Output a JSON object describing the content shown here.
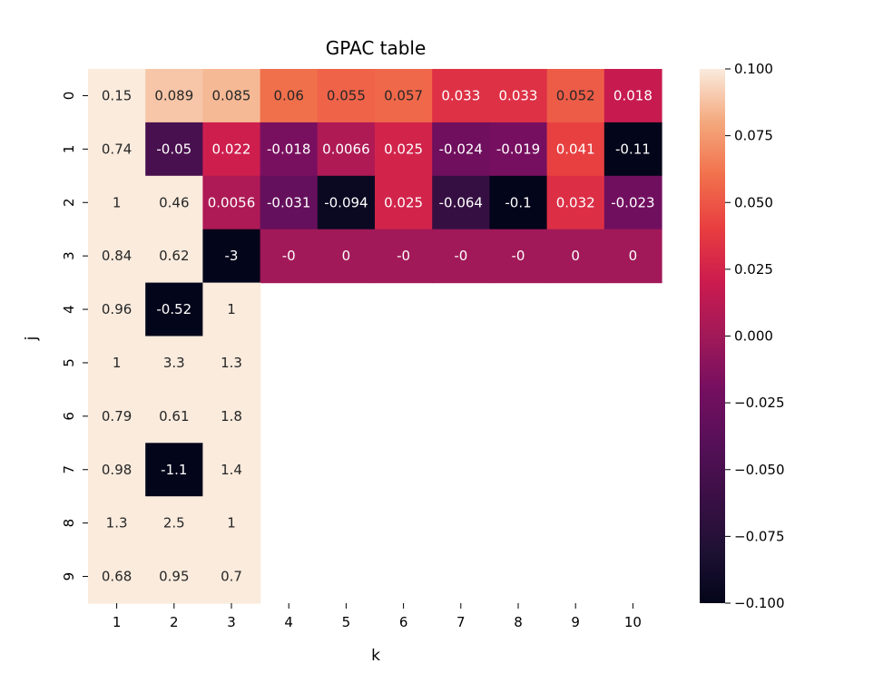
{
  "chart_data": {
    "type": "heatmap",
    "title": "GPAC table",
    "xlabel": "k",
    "ylabel": "j",
    "x_categories": [
      "1",
      "2",
      "3",
      "4",
      "5",
      "6",
      "7",
      "8",
      "9",
      "10"
    ],
    "y_categories": [
      "0",
      "1",
      "2",
      "3",
      "4",
      "5",
      "6",
      "7",
      "8",
      "9"
    ],
    "vmin": -0.1,
    "vmax": 0.1,
    "colormap": "rocket",
    "colorbar_ticks": [
      "0.100",
      "0.075",
      "0.050",
      "0.025",
      "0.000",
      "−0.025",
      "−0.050",
      "−0.075",
      "−0.100"
    ],
    "colorbar_tick_values": [
      0.1,
      0.075,
      0.05,
      0.025,
      0.0,
      -0.025,
      -0.05,
      -0.075,
      -0.1
    ],
    "values": [
      [
        0.15,
        0.089,
        0.085,
        0.06,
        0.055,
        0.057,
        0.033,
        0.033,
        0.052,
        0.018
      ],
      [
        0.74,
        -0.05,
        0.022,
        -0.018,
        0.0066,
        0.025,
        -0.024,
        -0.019,
        0.041,
        -0.11
      ],
      [
        1,
        0.46,
        0.0056,
        -0.031,
        -0.094,
        0.025,
        -0.064,
        -0.1,
        0.032,
        -0.023
      ],
      [
        0.84,
        0.62,
        -3,
        -0.0,
        0,
        -0.0,
        -0.0,
        -0.0,
        0,
        0
      ],
      [
        0.96,
        -0.52,
        1,
        null,
        null,
        null,
        null,
        null,
        null,
        null
      ],
      [
        1,
        3.3,
        1.3,
        null,
        null,
        null,
        null,
        null,
        null,
        null
      ],
      [
        0.79,
        0.61,
        1.8,
        null,
        null,
        null,
        null,
        null,
        null,
        null
      ],
      [
        0.98,
        -1.1,
        1.4,
        null,
        null,
        null,
        null,
        null,
        null,
        null
      ],
      [
        1.3,
        2.5,
        1,
        null,
        null,
        null,
        null,
        null,
        null,
        null
      ],
      [
        0.68,
        0.95,
        0.7,
        null,
        null,
        null,
        null,
        null,
        null,
        null
      ]
    ],
    "labels": [
      [
        "0.15",
        "0.089",
        "0.085",
        "0.06",
        "0.055",
        "0.057",
        "0.033",
        "0.033",
        "0.052",
        "0.018"
      ],
      [
        "0.74",
        "-0.05",
        "0.022",
        "-0.018",
        "0.0066",
        "0.025",
        "-0.024",
        "-0.019",
        "0.041",
        "-0.11"
      ],
      [
        "1",
        "0.46",
        "0.0056",
        "-0.031",
        "-0.094",
        "0.025",
        "-0.064",
        "-0.1",
        "0.032",
        "-0.023"
      ],
      [
        "0.84",
        "0.62",
        "-3",
        "-0",
        "0",
        "-0",
        "-0",
        "-0",
        "0",
        "0"
      ],
      [
        "0.96",
        "-0.52",
        "1",
        "",
        "",
        "",
        "",
        "",
        "",
        ""
      ],
      [
        "1",
        "3.3",
        "1.3",
        "",
        "",
        "",
        "",
        "",
        "",
        ""
      ],
      [
        "0.79",
        "0.61",
        "1.8",
        "",
        "",
        "",
        "",
        "",
        "",
        ""
      ],
      [
        "0.98",
        "-1.1",
        "1.4",
        "",
        "",
        "",
        "",
        "",
        "",
        ""
      ],
      [
        "1.3",
        "2.5",
        "1",
        "",
        "",
        "",
        "",
        "",
        "",
        ""
      ],
      [
        "0.68",
        "0.95",
        "0.7",
        "",
        "",
        "",
        "",
        "",
        "",
        ""
      ]
    ]
  }
}
